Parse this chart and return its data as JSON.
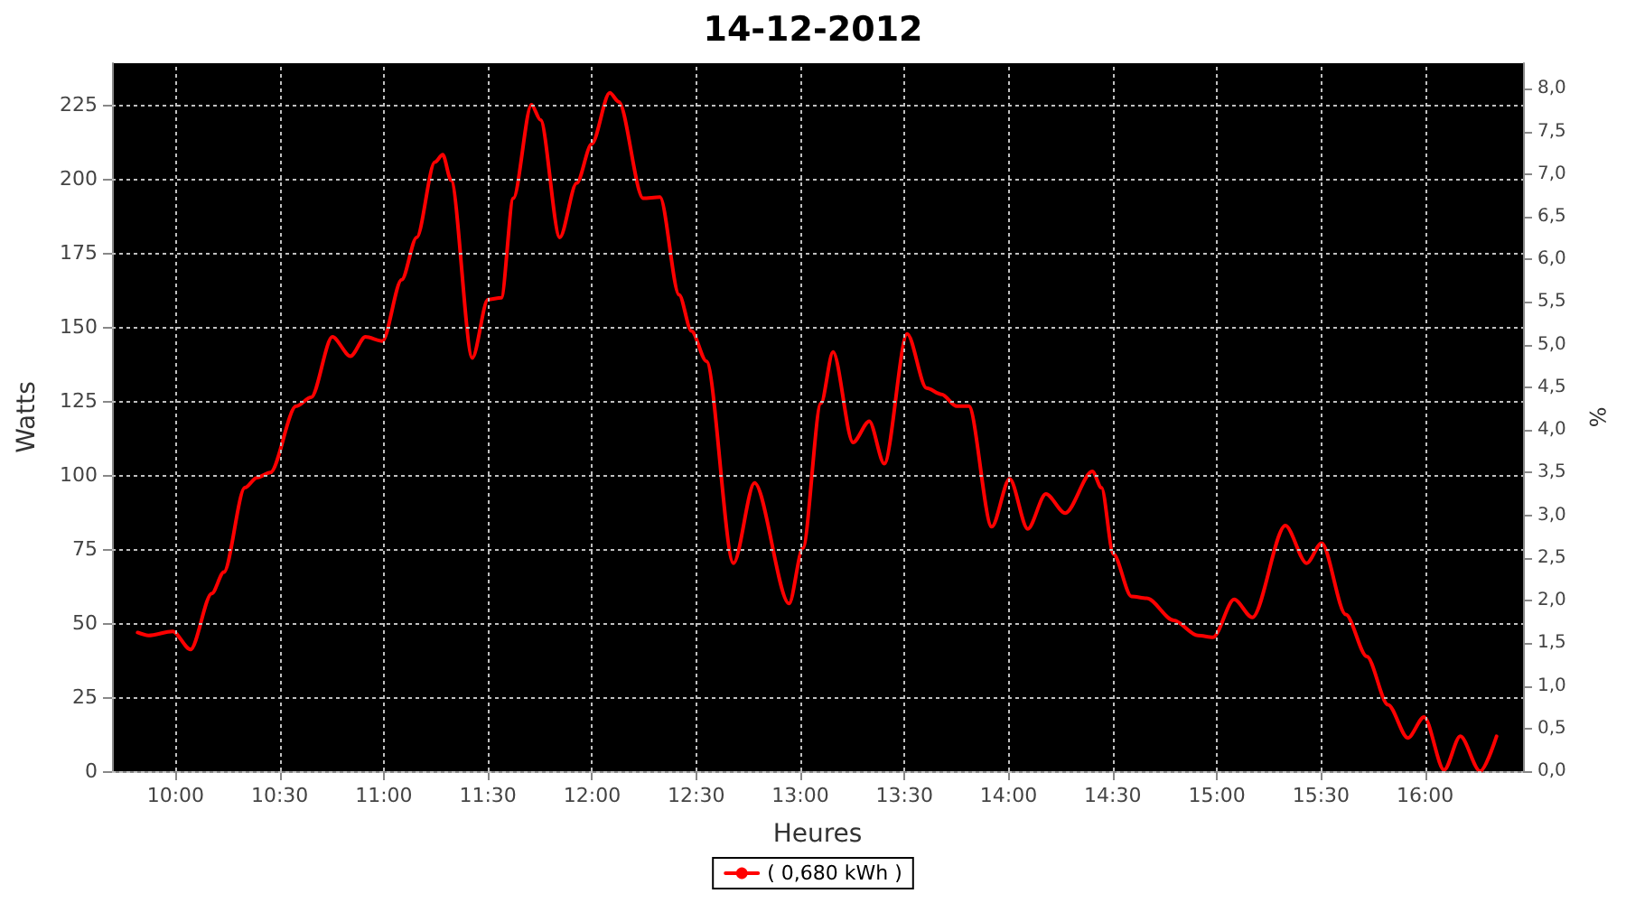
{
  "chart_data": {
    "type": "line",
    "title": "14-12-2012",
    "xlabel": "Heures",
    "ylabel": "Watts",
    "y2label": "%",
    "xlim": [
      9.695,
      16.47
    ],
    "xticks": [
      {
        "value": 10,
        "label": "10:00"
      },
      {
        "value": 10.5,
        "label": "10:30"
      },
      {
        "value": 11,
        "label": "11:00"
      },
      {
        "value": 11.5,
        "label": "11:30"
      },
      {
        "value": 12,
        "label": "12:00"
      },
      {
        "value": 12.5,
        "label": "12:30"
      },
      {
        "value": 13,
        "label": "13:00"
      },
      {
        "value": 13.5,
        "label": "13:30"
      },
      {
        "value": 14,
        "label": "14:00"
      },
      {
        "value": 14.5,
        "label": "14:30"
      },
      {
        "value": 15,
        "label": "15:00"
      },
      {
        "value": 15.5,
        "label": "15:30"
      },
      {
        "value": 16,
        "label": "16:00"
      }
    ],
    "ylim": [
      0,
      239
    ],
    "yticks": [
      0,
      25,
      50,
      75,
      100,
      125,
      150,
      175,
      200,
      225
    ],
    "y2lim": [
      0,
      8.3
    ],
    "y2ticks": [
      {
        "value": 0,
        "label": "0,0"
      },
      {
        "value": 0.5,
        "label": "0,5"
      },
      {
        "value": 1,
        "label": "1,0"
      },
      {
        "value": 1.5,
        "label": "1,5"
      },
      {
        "value": 2,
        "label": "2,0"
      },
      {
        "value": 2.5,
        "label": "2,5"
      },
      {
        "value": 3,
        "label": "3,0"
      },
      {
        "value": 3.5,
        "label": "3,5"
      },
      {
        "value": 4,
        "label": "4,0"
      },
      {
        "value": 4.5,
        "label": "4,5"
      },
      {
        "value": 5,
        "label": "5,0"
      },
      {
        "value": 5.5,
        "label": "5,5"
      },
      {
        "value": 6,
        "label": "6,0"
      },
      {
        "value": 6.5,
        "label": "6,5"
      },
      {
        "value": 7,
        "label": "7,0"
      },
      {
        "value": 7.5,
        "label": "7,5"
      },
      {
        "value": 8,
        "label": "8,0"
      }
    ],
    "grid": true,
    "legend": "bottom",
    "marker": "none",
    "line_style": "solid",
    "series": [
      {
        "name": "( 0,680 kWh )",
        "color": "#ff0000",
        "x": [
          9.818,
          9.87,
          9.986,
          10.072,
          10.174,
          10.232,
          10.333,
          10.391,
          10.455,
          10.579,
          10.651,
          10.753,
          10.84,
          10.912,
          10.993,
          11.086,
          11.158,
          11.245,
          11.283,
          11.323,
          11.425,
          11.5,
          11.564,
          11.622,
          11.709,
          11.752,
          11.845,
          11.926,
          11.998,
          12.085,
          12.128,
          12.245,
          12.326,
          12.418,
          12.477,
          12.549,
          12.679,
          12.78,
          12.946,
          13.012,
          13.099,
          13.157,
          13.253,
          13.331,
          13.403,
          13.513,
          13.606,
          13.678,
          13.751,
          13.809,
          13.919,
          14.005,
          14.092,
          14.179,
          14.272,
          14.402,
          14.446,
          14.503,
          14.59,
          14.663,
          14.793,
          14.909,
          14.982,
          15.083,
          15.17,
          15.329,
          15.431,
          15.503,
          15.619,
          15.72,
          15.822,
          15.917,
          15.995,
          16.091,
          16.169,
          16.264,
          16.343
        ],
        "values": [
          46.8,
          45.8,
          47.2,
          41.1,
          60,
          67.2,
          95.7,
          99.1,
          100.8,
          123.2,
          126.2,
          146.6,
          140.1,
          146.6,
          145.2,
          165.9,
          180.2,
          205.6,
          208.1,
          199.5,
          139.5,
          159.2,
          159.8,
          193.4,
          225,
          219.9,
          180.2,
          198.5,
          211.7,
          229,
          226,
          193.4,
          193.8,
          160.8,
          148.6,
          138.4,
          70.2,
          97.3,
          56.6,
          75.3,
          124.2,
          141.5,
          111,
          118.1,
          103.8,
          147.6,
          129.3,
          127.2,
          123.2,
          123.2,
          82.5,
          98.7,
          81.8,
          93.6,
          87.1,
          101.2,
          95.7,
          73.3,
          59,
          58.4,
          50.9,
          45.8,
          45.2,
          58,
          51.9,
          82.9,
          70.2,
          77,
          52.9,
          38.7,
          22.4,
          11.2,
          18.3,
          0.4,
          11.8,
          0,
          11.8
        ]
      }
    ]
  }
}
